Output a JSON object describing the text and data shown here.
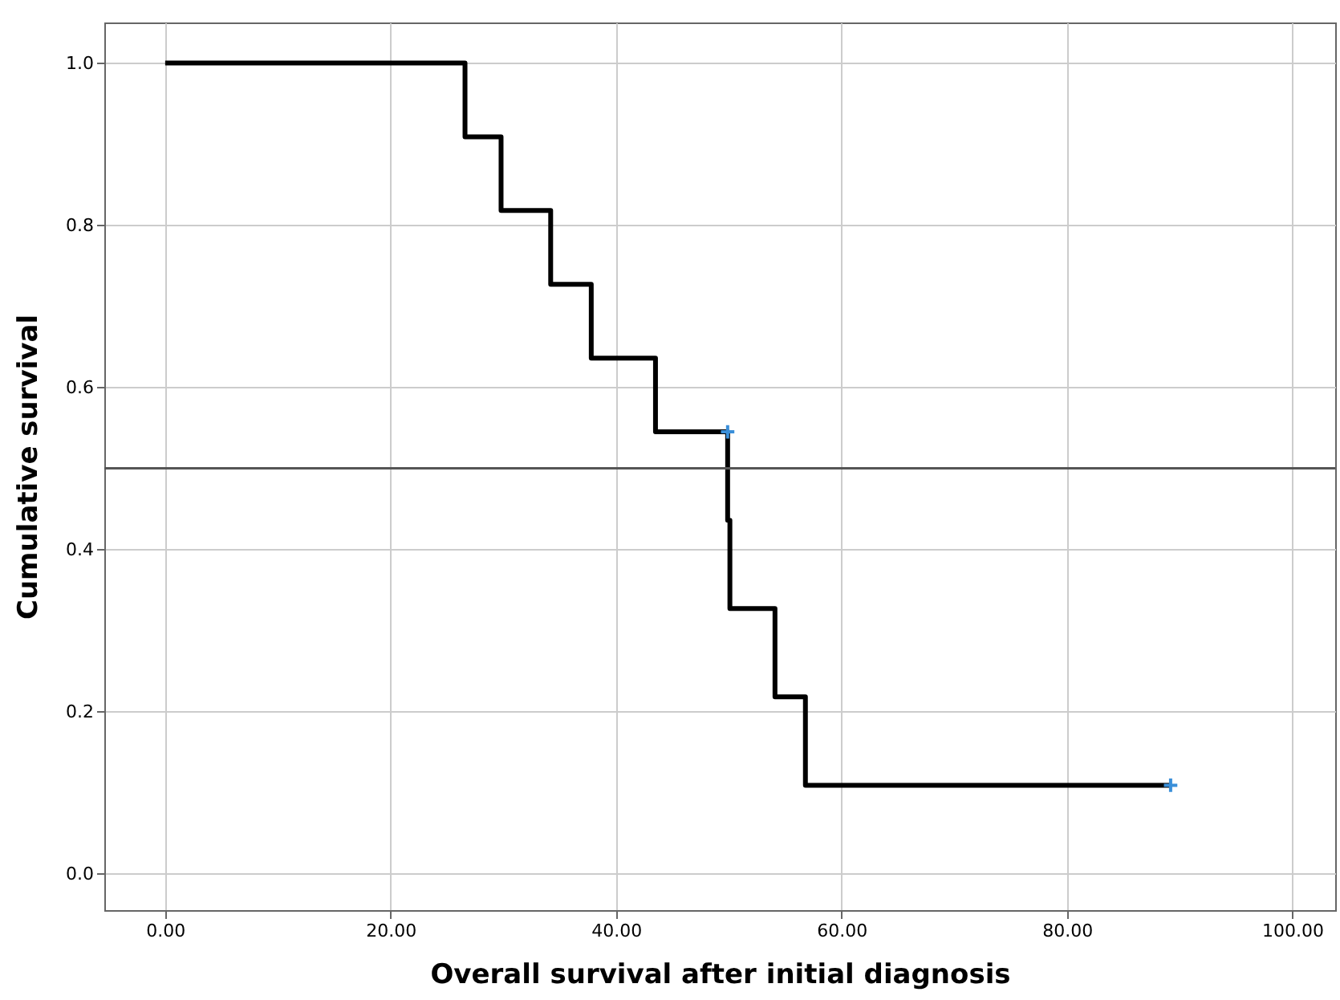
{
  "chart_data": {
    "type": "step",
    "xlabel": "Overall survival after initial diagnosis",
    "ylabel": "Cumulative survival",
    "series": [
      {
        "color": "#000000",
        "x": [
          0,
          26.6,
          29.8,
          34.2,
          37.8,
          43.5,
          49.9,
          50.1,
          54.1,
          56.8,
          89.2
        ],
        "values": [
          1.0,
          0.909,
          0.818,
          0.727,
          0.636,
          0.545,
          0.436,
          0.327,
          0.218,
          0.109,
          0.109
        ]
      },
      {
        "type": "scatter",
        "color": "#3a8fd9",
        "marker": "cross",
        "x": [
          49.9,
          89.2
        ],
        "values": [
          0.545,
          0.109
        ]
      }
    ],
    "xlim": [
      -5.4,
      103.8
    ],
    "ylim": [
      -0.045,
      1.05
    ],
    "xticks": [
      {
        "value": 0,
        "label": "0.00"
      },
      {
        "value": 20,
        "label": "20.00"
      },
      {
        "value": 40,
        "label": "40.00"
      },
      {
        "value": 60,
        "label": "60.00"
      },
      {
        "value": 80,
        "label": "80.00"
      },
      {
        "value": 100,
        "label": "100.00"
      }
    ],
    "yticks": [
      {
        "value": 0,
        "label": "0.0"
      },
      {
        "value": 0.2,
        "label": "0.2"
      },
      {
        "value": 0.4,
        "label": "0.4"
      },
      {
        "value": 0.6,
        "label": "0.6"
      },
      {
        "value": 0.8,
        "label": "0.8"
      },
      {
        "value": 1,
        "label": "1.0"
      }
    ],
    "ref_lines": [
      {
        "axis": "y",
        "value": 0.5,
        "color": "#555555"
      }
    ],
    "grid": true
  }
}
